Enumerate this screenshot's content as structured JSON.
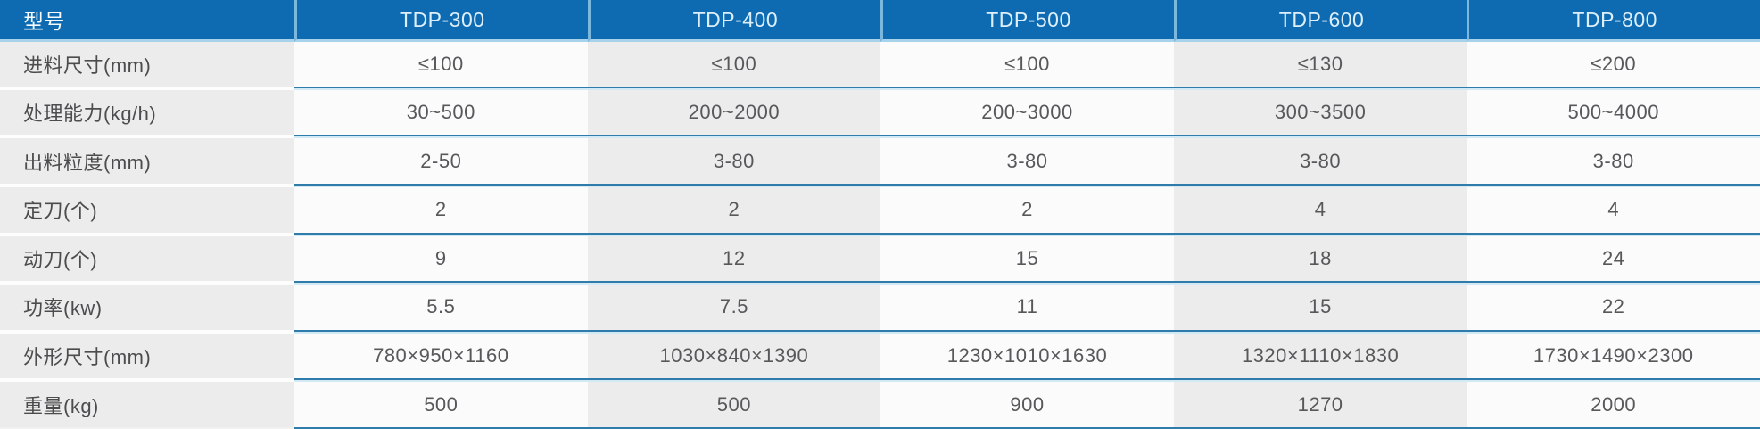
{
  "table": {
    "header": {
      "model_label": "型号",
      "models": [
        "TDP-300",
        "TDP-400",
        "TDP-500",
        "TDP-600",
        "TDP-800"
      ]
    },
    "rows": [
      {
        "label": "进料尺寸(mm)",
        "values": [
          "≤100",
          "≤100",
          "≤100",
          "≤130",
          "≤200"
        ]
      },
      {
        "label": "处理能力(kg/h)",
        "values": [
          "30~500",
          "200~2000",
          "200~3000",
          "300~3500",
          "500~4000"
        ]
      },
      {
        "label": "出料粒度(mm)",
        "values": [
          "2-50",
          "3-80",
          "3-80",
          "3-80",
          "3-80"
        ]
      },
      {
        "label": "定刀(个)",
        "values": [
          "2",
          "2",
          "2",
          "4",
          "4"
        ]
      },
      {
        "label": "动刀(个)",
        "values": [
          "9",
          "12",
          "15",
          "18",
          "24"
        ]
      },
      {
        "label": "功率(kw)",
        "values": [
          "5.5",
          "7.5",
          "11",
          "15",
          "22"
        ]
      },
      {
        "label": "外形尺寸(mm)",
        "values": [
          "780×950×1160",
          "1030×840×1390",
          "1230×1010×1630",
          "1320×1110×1830",
          "1730×1490×2300"
        ]
      },
      {
        "label": "重量(kg)",
        "values": [
          "500",
          "500",
          "900",
          "1270",
          "2000"
        ]
      }
    ],
    "colors": {
      "header_bg": "#0e6bb1",
      "header_divider": "#7cb8de",
      "header_underline": "#a6d2ec",
      "row_divider_dark": "#2f7cab",
      "row_divider_light": "#d3e9f4",
      "column_gray": "#ececec",
      "column_white": "#fbfbfb"
    }
  }
}
